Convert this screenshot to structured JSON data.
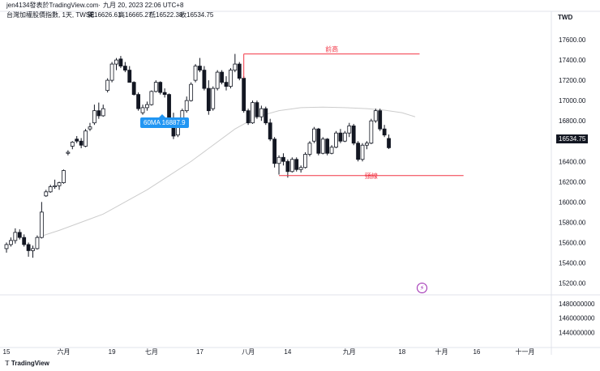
{
  "header": {
    "author": "jen4134發表於TradingView.com",
    "date": "九月 20, 2023 22:06 UTC+8",
    "symbol_line": "台灣加權股價指數, 1天, TWSE",
    "open_label": "開",
    "open": "16626.61",
    "high_label": "高",
    "high": "16665.27",
    "low_label": "低",
    "low": "16522.38",
    "close_label": "收",
    "close": "16534.75"
  },
  "currency": "TWD",
  "ma_label": "60MA 16887.9",
  "last_price": "16534.75",
  "logo": "TradingView",
  "colors": {
    "up": "#ffffff",
    "down": "#131722",
    "ma": "#cccccc",
    "annotation": "#f23645",
    "ma_tag": "#2196f3",
    "grid": "#f0f3fa"
  },
  "annotations": [
    {
      "label": "前高",
      "level": 17460,
      "from": "2023-07-31",
      "to": "2023-09-25"
    },
    {
      "label": "頸線",
      "level": 16260,
      "from": "2023-08-11",
      "to": "2023-10-12"
    }
  ],
  "chart_data": {
    "type": "candlestick",
    "price_axis": {
      "ylim": [
        15100,
        17800
      ],
      "ticks": [
        "17600.00",
        "17400.00",
        "17200.00",
        "17000.00",
        "16800.00",
        "16600.00",
        "16400.00",
        "16200.00",
        "16000.00",
        "15800.00",
        "15600.00",
        "15400.00",
        "15200.00"
      ],
      "values": [
        17600,
        17400,
        17200,
        17000,
        16800,
        16600,
        16400,
        16200,
        16000,
        15800,
        15600,
        15400,
        15200
      ]
    },
    "volume_axis": {
      "ylim": [
        1420000000,
        1490000000
      ],
      "ticks": [
        "1480000000",
        "1460000000",
        "1440000000"
      ],
      "values": [
        1480000000,
        1460000000,
        1440000000
      ]
    },
    "x_ticks": [
      {
        "label": "15",
        "i": 0
      },
      {
        "label": "六月",
        "i": 13
      },
      {
        "label": "19",
        "i": 24
      },
      {
        "label": "七月",
        "i": 33
      },
      {
        "label": "17",
        "i": 44
      },
      {
        "label": "八月",
        "i": 55
      },
      {
        "label": "14",
        "i": 64
      },
      {
        "label": "九月",
        "i": 78
      },
      {
        "label": "18",
        "i": 90
      },
      {
        "label": "十月",
        "i": 99
      },
      {
        "label": "16",
        "i": 107
      },
      {
        "label": "十一月",
        "i": 118
      }
    ],
    "ma_name": "60MA",
    "ma": [
      [
        7,
        15650
      ],
      [
        12,
        15720
      ],
      [
        17,
        15800
      ],
      [
        22,
        15880
      ],
      [
        27,
        16000
      ],
      [
        32,
        16120
      ],
      [
        37,
        16260
      ],
      [
        42,
        16400
      ],
      [
        47,
        16560
      ],
      [
        52,
        16720
      ],
      [
        57,
        16840
      ],
      [
        62,
        16900
      ],
      [
        67,
        16930
      ],
      [
        72,
        16935
      ],
      [
        77,
        16930
      ],
      [
        82,
        16920
      ],
      [
        86,
        16905
      ],
      [
        90,
        16880
      ],
      [
        93,
        16840
      ]
    ],
    "candles": [
      {
        "o": 15540,
        "h": 15600,
        "l": 15500,
        "c": 15580
      },
      {
        "o": 15580,
        "h": 15650,
        "l": 15560,
        "c": 15620
      },
      {
        "o": 15620,
        "h": 15740,
        "l": 15590,
        "c": 15700
      },
      {
        "o": 15700,
        "h": 15730,
        "l": 15630,
        "c": 15650
      },
      {
        "o": 15650,
        "h": 15680,
        "l": 15560,
        "c": 15580
      },
      {
        "o": 15580,
        "h": 15600,
        "l": 15460,
        "c": 15520
      },
      {
        "o": 15520,
        "h": 15570,
        "l": 15450,
        "c": 15540
      },
      {
        "o": 15540,
        "h": 15670,
        "l": 15530,
        "c": 15650
      },
      {
        "o": 15650,
        "h": 16000,
        "l": 15640,
        "c": 15900
      },
      {
        "o": 16060,
        "h": 16120,
        "l": 16050,
        "c": 16100
      },
      {
        "o": 16100,
        "h": 16170,
        "l": 16090,
        "c": 16150
      },
      {
        "o": 16150,
        "h": 16220,
        "l": 16130,
        "c": 16160
      },
      {
        "o": 16160,
        "h": 16200,
        "l": 16120,
        "c": 16190
      },
      {
        "o": 16190,
        "h": 16320,
        "l": 16180,
        "c": 16310
      },
      {
        "o": 16480,
        "h": 16510,
        "l": 16460,
        "c": 16490
      },
      {
        "o": 16550,
        "h": 16600,
        "l": 16520,
        "c": 16590
      },
      {
        "o": 16620,
        "h": 16650,
        "l": 16580,
        "c": 16600
      },
      {
        "o": 16600,
        "h": 16630,
        "l": 16530,
        "c": 16560
      },
      {
        "o": 16550,
        "h": 16720,
        "l": 16540,
        "c": 16700
      },
      {
        "o": 16720,
        "h": 16780,
        "l": 16700,
        "c": 16740
      },
      {
        "o": 16780,
        "h": 16960,
        "l": 16760,
        "c": 16900
      },
      {
        "o": 16900,
        "h": 16980,
        "l": 16820,
        "c": 16850
      },
      {
        "o": 16850,
        "h": 16960,
        "l": 16840,
        "c": 16920
      },
      {
        "o": 17100,
        "h": 17220,
        "l": 17080,
        "c": 17200
      },
      {
        "o": 17200,
        "h": 17380,
        "l": 17180,
        "c": 17360
      },
      {
        "o": 17360,
        "h": 17420,
        "l": 17300,
        "c": 17400
      },
      {
        "o": 17410,
        "h": 17440,
        "l": 17320,
        "c": 17340
      },
      {
        "o": 17340,
        "h": 17380,
        "l": 17280,
        "c": 17300
      },
      {
        "o": 17300,
        "h": 17340,
        "l": 17180,
        "c": 17180
      },
      {
        "o": 17180,
        "h": 17190,
        "l": 17050,
        "c": 17060
      },
      {
        "o": 17060,
        "h": 17080,
        "l": 16900,
        "c": 16920
      },
      {
        "o": 16880,
        "h": 16960,
        "l": 16860,
        "c": 16930
      },
      {
        "o": 16930,
        "h": 16990,
        "l": 16900,
        "c": 16960
      },
      {
        "o": 16960,
        "h": 17100,
        "l": 16950,
        "c": 17090
      },
      {
        "o": 17090,
        "h": 17200,
        "l": 17080,
        "c": 17180
      },
      {
        "o": 17180,
        "h": 17190,
        "l": 17060,
        "c": 17080
      },
      {
        "o": 17080,
        "h": 17120,
        "l": 17030,
        "c": 17060
      },
      {
        "o": 17060,
        "h": 17070,
        "l": 16780,
        "c": 16800
      },
      {
        "o": 16800,
        "h": 16880,
        "l": 16620,
        "c": 16650
      },
      {
        "o": 16660,
        "h": 16780,
        "l": 16640,
        "c": 16760
      },
      {
        "o": 16760,
        "h": 16920,
        "l": 16740,
        "c": 16900
      },
      {
        "o": 16900,
        "h": 17040,
        "l": 16880,
        "c": 17000
      },
      {
        "o": 17000,
        "h": 17180,
        "l": 16990,
        "c": 17160
      },
      {
        "o": 17200,
        "h": 17360,
        "l": 17180,
        "c": 17340
      },
      {
        "o": 17340,
        "h": 17420,
        "l": 17280,
        "c": 17300
      },
      {
        "o": 17300,
        "h": 17340,
        "l": 17100,
        "c": 17120
      },
      {
        "o": 17120,
        "h": 17200,
        "l": 16860,
        "c": 16900
      },
      {
        "o": 16920,
        "h": 17140,
        "l": 16900,
        "c": 17120
      },
      {
        "o": 17120,
        "h": 17300,
        "l": 17100,
        "c": 17280
      },
      {
        "o": 17280,
        "h": 17300,
        "l": 17160,
        "c": 17180
      },
      {
        "o": 17180,
        "h": 17240,
        "l": 17100,
        "c": 17140
      },
      {
        "o": 17140,
        "h": 17320,
        "l": 17120,
        "c": 17300
      },
      {
        "o": 17300,
        "h": 17460,
        "l": 17280,
        "c": 17360
      },
      {
        "o": 17360,
        "h": 17380,
        "l": 17200,
        "c": 17220
      },
      {
        "o": 17220,
        "h": 17240,
        "l": 16880,
        "c": 16900
      },
      {
        "o": 16900,
        "h": 16920,
        "l": 16760,
        "c": 16780
      },
      {
        "o": 16780,
        "h": 17000,
        "l": 16770,
        "c": 16980
      },
      {
        "o": 16980,
        "h": 17000,
        "l": 16820,
        "c": 16840
      },
      {
        "o": 16840,
        "h": 16950,
        "l": 16800,
        "c": 16920
      },
      {
        "o": 16920,
        "h": 16940,
        "l": 16760,
        "c": 16780
      },
      {
        "o": 16780,
        "h": 16820,
        "l": 16600,
        "c": 16620
      },
      {
        "o": 16620,
        "h": 16640,
        "l": 16340,
        "c": 16380
      },
      {
        "o": 16380,
        "h": 16460,
        "l": 16270,
        "c": 16440
      },
      {
        "o": 16440,
        "h": 16480,
        "l": 16360,
        "c": 16400
      },
      {
        "o": 16400,
        "h": 16420,
        "l": 16240,
        "c": 16300
      },
      {
        "o": 16300,
        "h": 16440,
        "l": 16290,
        "c": 16420
      },
      {
        "o": 16420,
        "h": 16440,
        "l": 16300,
        "c": 16320
      },
      {
        "o": 16320,
        "h": 16360,
        "l": 16290,
        "c": 16340
      },
      {
        "o": 16340,
        "h": 16490,
        "l": 16330,
        "c": 16470
      },
      {
        "o": 16470,
        "h": 16600,
        "l": 16450,
        "c": 16580
      },
      {
        "o": 16600,
        "h": 16740,
        "l": 16580,
        "c": 16720
      },
      {
        "o": 16720,
        "h": 16730,
        "l": 16460,
        "c": 16480
      },
      {
        "o": 16480,
        "h": 16640,
        "l": 16470,
        "c": 16620
      },
      {
        "o": 16620,
        "h": 16630,
        "l": 16460,
        "c": 16480
      },
      {
        "o": 16480,
        "h": 16560,
        "l": 16470,
        "c": 16540
      },
      {
        "o": 16540,
        "h": 16700,
        "l": 16530,
        "c": 16680
      },
      {
        "o": 16680,
        "h": 16720,
        "l": 16580,
        "c": 16600
      },
      {
        "o": 16600,
        "h": 16700,
        "l": 16590,
        "c": 16680
      },
      {
        "o": 16680,
        "h": 16780,
        "l": 16640,
        "c": 16750
      },
      {
        "o": 16750,
        "h": 16770,
        "l": 16560,
        "c": 16580
      },
      {
        "o": 16580,
        "h": 16600,
        "l": 16400,
        "c": 16420
      },
      {
        "o": 16420,
        "h": 16580,
        "l": 16400,
        "c": 16560
      },
      {
        "o": 16560,
        "h": 16600,
        "l": 16520,
        "c": 16580
      },
      {
        "o": 16580,
        "h": 16820,
        "l": 16570,
        "c": 16800
      },
      {
        "o": 16800,
        "h": 16920,
        "l": 16780,
        "c": 16900
      },
      {
        "o": 16900,
        "h": 16920,
        "l": 16700,
        "c": 16720
      },
      {
        "o": 16720,
        "h": 16760,
        "l": 16640,
        "c": 16660
      },
      {
        "o": 16626.61,
        "h": 16665.27,
        "l": 16522.38,
        "c": 16534.75
      }
    ]
  }
}
